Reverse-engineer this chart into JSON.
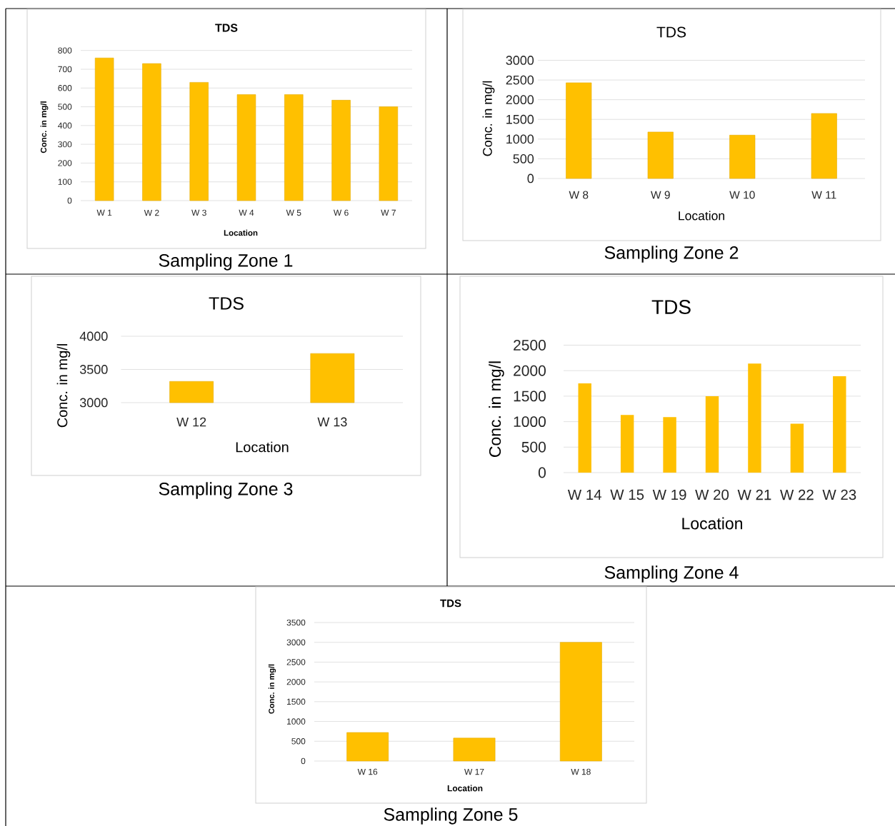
{
  "chart_data": [
    {
      "type": "bar",
      "title": "TDS",
      "xlabel": "Location",
      "ylabel": "Conc. in mg/l",
      "categories": [
        "W 1",
        "W 2",
        "W 3",
        "W 4",
        "W 5",
        "W 6",
        "W 7"
      ],
      "values": [
        760,
        730,
        630,
        565,
        565,
        535,
        500
      ],
      "color": "#ffc000",
      "ylim": [
        0,
        800
      ],
      "yticks": [
        0,
        100,
        200,
        300,
        400,
        500,
        600,
        700,
        800
      ],
      "grid": "y",
      "annotations": [
        "Sampling Zone 1"
      ]
    },
    {
      "type": "bar",
      "title": "TDS",
      "xlabel": "Location",
      "ylabel": "Conc. in mg/l",
      "categories": [
        "W 8",
        "W 9",
        "W 10",
        "W 11"
      ],
      "values": [
        2430,
        1180,
        1100,
        1650
      ],
      "color": "#ffc000",
      "ylim": [
        0,
        3000
      ],
      "yticks": [
        0,
        500,
        1000,
        1500,
        2000,
        2500,
        3000
      ],
      "grid": "y",
      "annotations": [
        "Sampling Zone 2"
      ]
    },
    {
      "type": "bar",
      "title": "TDS",
      "xlabel": "Location",
      "ylabel": "Conc. in mg/l",
      "categories": [
        "W 12",
        "W 13"
      ],
      "values": [
        3320,
        3740
      ],
      "color": "#ffc000",
      "ylim": [
        3000,
        4000
      ],
      "yticks": [
        3000,
        3500,
        4000
      ],
      "grid": "y",
      "annotations": [
        "Sampling Zone 3"
      ]
    },
    {
      "type": "bar",
      "title": "TDS",
      "xlabel": "Location",
      "ylabel": "Conc. in mg/l",
      "categories": [
        "W 14",
        "W 15",
        "W 19",
        "W 20",
        "W 21",
        "W 22",
        "W 23"
      ],
      "values": [
        1750,
        1130,
        1090,
        1500,
        2140,
        960,
        1890
      ],
      "color": "#ffc000",
      "ylim": [
        0,
        2500
      ],
      "yticks": [
        0,
        500,
        1000,
        1500,
        2000,
        2500
      ],
      "grid": "y",
      "annotations": [
        "Sampling Zone 4"
      ]
    },
    {
      "type": "bar",
      "title": "TDS",
      "xlabel": "Location",
      "ylabel": "Conc. in mg/l",
      "categories": [
        "W 16",
        "W 17",
        "W 18"
      ],
      "values": [
        720,
        580,
        3000
      ],
      "color": "#ffc000",
      "ylim": [
        0,
        3500
      ],
      "yticks": [
        0,
        500,
        1000,
        1500,
        2000,
        2500,
        3000,
        3500
      ],
      "grid": "y",
      "annotations": [
        "Sampling Zone 5"
      ]
    }
  ]
}
